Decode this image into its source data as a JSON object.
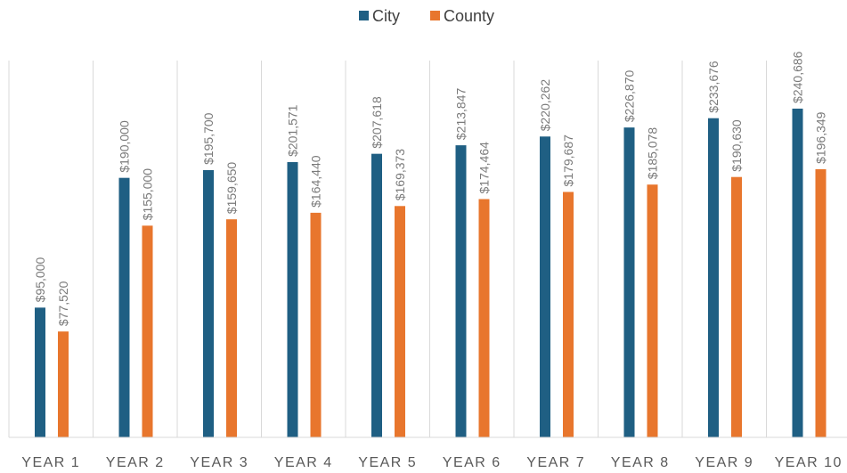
{
  "chart_data": {
    "type": "bar",
    "title": "",
    "xlabel": "",
    "ylabel": "",
    "categories": [
      "YEAR 1",
      "YEAR 2",
      "YEAR 3",
      "YEAR 4",
      "YEAR 5",
      "YEAR 6",
      "YEAR 7",
      "YEAR 8",
      "YEAR 9",
      "YEAR 10"
    ],
    "series": [
      {
        "name": "City",
        "color": "#1f5f83",
        "values": [
          95000,
          190000,
          195700,
          201571,
          207618,
          213847,
          220262,
          226870,
          233676,
          240686
        ],
        "labels": [
          "$95,000",
          "$190,000",
          "$195,700",
          "$201,571",
          "$207,618",
          "$213,847",
          "$220,262",
          "$226,870",
          "$233,676",
          "$240,686"
        ]
      },
      {
        "name": "County",
        "color": "#e8762d",
        "values": [
          77520,
          155000,
          159650,
          164440,
          169373,
          174464,
          179687,
          185078,
          190630,
          196349
        ],
        "labels": [
          "$77,520",
          "$155,000",
          "$159,650",
          "$164,440",
          "$169,373",
          "$174,464",
          "$179,687",
          "$185,078",
          "$190,630",
          "$196,349"
        ]
      }
    ],
    "ylim": [
      0,
      255000
    ],
    "grid": false,
    "legend": "top-center",
    "category_separators": true,
    "data_labels": "rotated-vertical"
  }
}
